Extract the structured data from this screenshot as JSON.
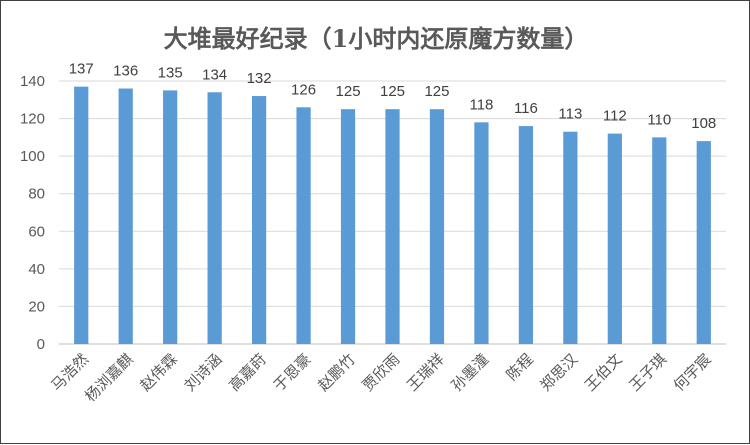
{
  "chart_data": {
    "type": "bar",
    "title": "大堆最好纪录（1小时内还原魔方数量）",
    "categories": [
      "马浩然",
      "杨浏嘉麒",
      "赵伟霖",
      "刘诗涵",
      "高嘉莳",
      "于恩豪",
      "赵鹏竹",
      "贾欣雨",
      "王瑞祥",
      "孙墨潼",
      "陈程",
      "郑思汉",
      "王伯文",
      "王子琪",
      "何宇宸"
    ],
    "values": [
      137,
      136,
      135,
      134,
      132,
      126,
      125,
      125,
      125,
      118,
      116,
      113,
      112,
      110,
      108
    ],
    "ylim": [
      0,
      140
    ],
    "yticks": [
      0,
      20,
      40,
      60,
      80,
      100,
      120,
      140
    ],
    "grid": true,
    "bar_color": "#5B9BD5",
    "grid_color": "#D9D9D9",
    "data_labels": true,
    "xtick_rotation": "diagonal"
  }
}
